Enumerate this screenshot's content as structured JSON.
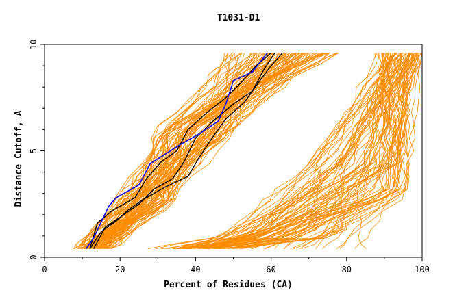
{
  "chart_data": {
    "type": "line",
    "title": "T1031-D1",
    "xlabel": "Percent of Residues (CA)",
    "ylabel": "Distance Cutoff, A",
    "xlim": [
      0,
      100
    ],
    "ylim": [
      0,
      10
    ],
    "x_ticks": [
      "0",
      "20",
      "40",
      "60",
      "80",
      "100"
    ],
    "y_ticks": [
      "0",
      "5",
      "10"
    ],
    "grid": false,
    "legend": "none",
    "colors": {
      "models": "#ff8c00",
      "highlight": "#0000ff",
      "reference": "#000000",
      "axis": "#000000"
    },
    "highlight_series": [
      {
        "values": [
          [
            11,
            0.4
          ],
          [
            13,
            0.9
          ],
          [
            17,
            2.4
          ],
          [
            19,
            2.8
          ],
          [
            25,
            3.4
          ],
          [
            28,
            4.4
          ],
          [
            36,
            5.3
          ],
          [
            41,
            5.8
          ],
          [
            46,
            6.4
          ],
          [
            48,
            7.2
          ],
          [
            50,
            8.3
          ],
          [
            55,
            8.7
          ],
          [
            59,
            9.6
          ]
        ]
      }
    ],
    "reference_series": [
      {
        "values": [
          [
            12,
            0.4
          ],
          [
            15,
            1.2
          ],
          [
            19,
            1.7
          ],
          [
            22,
            2.2
          ],
          [
            26,
            2.7
          ],
          [
            32,
            3.3
          ],
          [
            38,
            3.8
          ],
          [
            41,
            4.7
          ],
          [
            44,
            5.5
          ],
          [
            48,
            6.5
          ],
          [
            53,
            7.3
          ],
          [
            57,
            8.3
          ],
          [
            60,
            9.0
          ],
          [
            63,
            9.6
          ]
        ]
      },
      {
        "values": [
          [
            13,
            0.4
          ],
          [
            16,
            1.4
          ],
          [
            21,
            2.0
          ],
          [
            25,
            2.5
          ],
          [
            29,
            3.2
          ],
          [
            34,
            3.7
          ],
          [
            37,
            4.5
          ],
          [
            40,
            5.6
          ],
          [
            44,
            6.3
          ],
          [
            50,
            7.2
          ],
          [
            55,
            7.8
          ],
          [
            58,
            8.8
          ],
          [
            61,
            9.6
          ]
        ]
      },
      {
        "values": [
          [
            12,
            0.4
          ],
          [
            14,
            1.6
          ],
          [
            18,
            2.2
          ],
          [
            24,
            2.8
          ],
          [
            27,
            3.7
          ],
          [
            31,
            4.5
          ],
          [
            35,
            5.0
          ],
          [
            38,
            6.0
          ],
          [
            43,
            6.8
          ],
          [
            48,
            7.5
          ],
          [
            52,
            8.2
          ],
          [
            56,
            9.0
          ],
          [
            60,
            9.6
          ]
        ]
      }
    ],
    "model_series_generation": {
      "count": 180,
      "note": "dense family of model curves"
    }
  }
}
